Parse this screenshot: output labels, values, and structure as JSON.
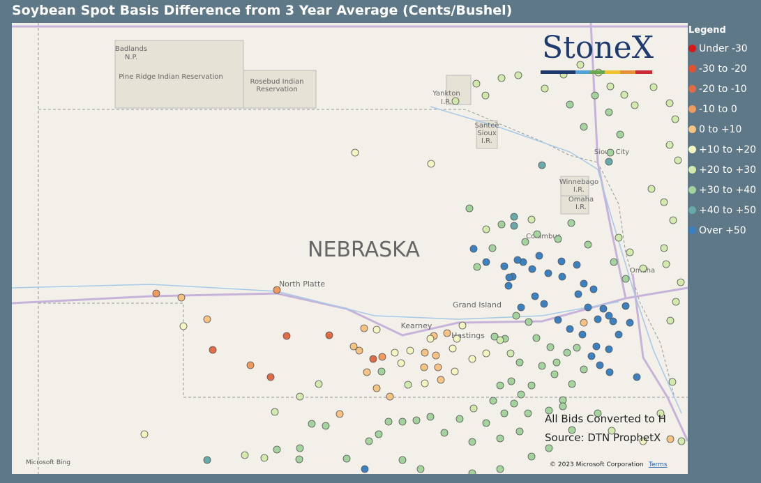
{
  "title": "Soybean Spot Basis Difference from 3 Year Average (Cents/Bushel)",
  "legend": {
    "title": "Legend",
    "items": [
      {
        "label": "Under -30",
        "color": "#d7191c"
      },
      {
        "label": "-30 to -20",
        "color": "#e4502f"
      },
      {
        "label": "-20 to -10",
        "color": "#e26a45"
      },
      {
        "label": "-10 to 0",
        "color": "#f09a5e"
      },
      {
        "label": "0 to +10",
        "color": "#f7c382"
      },
      {
        "label": "+10 to +20",
        "color": "#f4f6c2"
      },
      {
        "label": "+20 to +30",
        "color": "#d3eaae"
      },
      {
        "label": "+30 to +40",
        "color": "#a4d39d"
      },
      {
        "label": "+40 to +50",
        "color": "#6aa9a9"
      },
      {
        "label": "Over +50",
        "color": "#3b80c1"
      }
    ]
  },
  "logo": "StoneX",
  "map": {
    "state_label": "NEBRASKA",
    "places": [
      [
        "Badlands",
        "N.P."
      ],
      [
        "Pine Ridge Indian Reservation"
      ],
      [
        "Rosebud Indian",
        "Reservation"
      ],
      [
        "Yankton",
        "I.R."
      ],
      [
        "Santee",
        "Sioux",
        "I.R."
      ],
      [
        "Sioux City"
      ],
      [
        "Winnebago",
        "I.R."
      ],
      [
        "Omaha",
        "I.R."
      ],
      [
        "Columbus"
      ],
      [
        "Omaha"
      ],
      [
        "North Platte"
      ],
      [
        "Grand Island"
      ],
      [
        "Kearney"
      ],
      [
        "Hastings"
      ]
    ]
  },
  "notes": [
    "All Bids Converted to H",
    "Source: DTN ProphetX"
  ],
  "attribution": {
    "provider": "Microsoft Bing",
    "copyright": "© 2023 Microsoft Corporation",
    "terms": "Terms"
  }
}
